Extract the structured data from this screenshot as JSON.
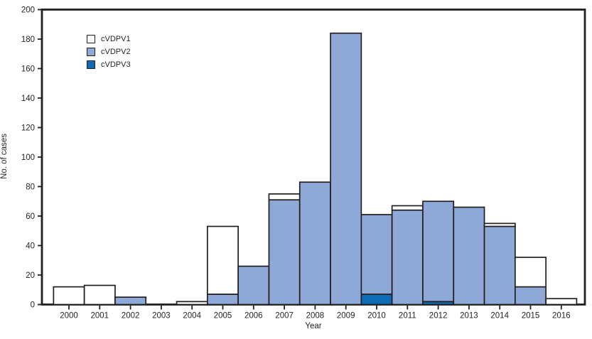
{
  "figure": {
    "background_color": "#ffffff",
    "text_color": "#231f20",
    "axis_color": "#231f20"
  },
  "chart_data": {
    "type": "bar",
    "stacked": true,
    "title": "",
    "xlabel": "Year",
    "ylabel": "No. of cases",
    "ylim": [
      0,
      200
    ],
    "yticks": [
      0,
      20,
      40,
      60,
      80,
      100,
      120,
      140,
      160,
      180,
      200
    ],
    "grid": false,
    "frame_box": true,
    "bar_border_color": "#231f20",
    "legend_position": "top-left",
    "categories": [
      "2000",
      "2001",
      "2002",
      "2003",
      "2004",
      "2005",
      "2006",
      "2007",
      "2008",
      "2009",
      "2010",
      "2011",
      "2012",
      "2013",
      "2014",
      "2015",
      "2016"
    ],
    "stack_order_bottom_to_top": [
      "cVDPV3",
      "cVDPV2",
      "cVDPV1"
    ],
    "series": [
      {
        "name": "cVDPV1",
        "color": "#ffffff",
        "values": [
          12,
          13,
          0,
          0,
          2,
          46,
          0,
          4,
          0,
          0,
          0,
          3,
          0,
          0,
          2,
          20,
          4
        ]
      },
      {
        "name": "cVDPV2",
        "color": "#8EA8D8",
        "values": [
          0,
          0,
          5,
          0,
          0,
          7,
          26,
          71,
          83,
          184,
          54,
          64,
          68,
          66,
          53,
          12,
          0
        ]
      },
      {
        "name": "cVDPV3",
        "color": "#0D6CB5",
        "values": [
          0,
          0,
          0,
          0,
          0,
          0,
          0,
          0,
          0,
          0,
          7,
          0,
          2,
          0,
          0,
          0,
          0
        ]
      }
    ]
  }
}
